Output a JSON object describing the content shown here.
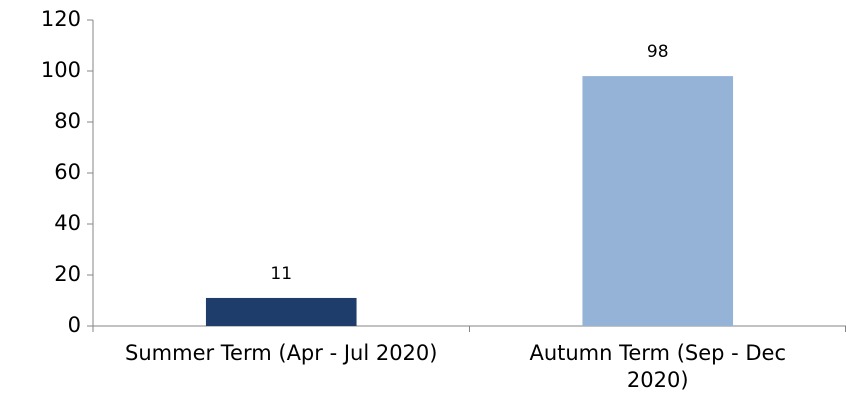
{
  "chart_data": {
    "type": "bar",
    "categories": [
      "Summer Term (Apr - Jul 2020)",
      "Autumn Term (Sep - Dec 2020)"
    ],
    "values": [
      11,
      98
    ],
    "colors": [
      "#1f3d6b",
      "#95b3d7"
    ],
    "ylim": [
      0,
      120
    ],
    "yticks": [
      0,
      20,
      40,
      60,
      80,
      100,
      120
    ],
    "grid": false
  }
}
